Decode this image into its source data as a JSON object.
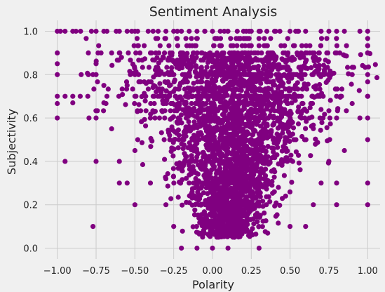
{
  "chart_data": {
    "type": "scatter",
    "title": "Sentiment Analysis",
    "xlabel": "Polarity",
    "ylabel": "Subjectivity",
    "xlim": [
      -1.08,
      1.08
    ],
    "ylim": [
      -0.05,
      1.05
    ],
    "xticks": [
      -1.0,
      -0.75,
      -0.5,
      -0.25,
      0.0,
      0.25,
      0.5,
      0.75,
      1.0
    ],
    "xtick_labels": [
      "−1.00",
      "−0.75",
      "−0.50",
      "−0.25",
      "0.00",
      "0.25",
      "0.50",
      "0.75",
      "1.00"
    ],
    "yticks": [
      0.0,
      0.2,
      0.4,
      0.6,
      0.8,
      1.0
    ],
    "ytick_labels": [
      "0.0",
      "0.2",
      "0.4",
      "0.6",
      "0.8",
      "1.0"
    ],
    "grid": true,
    "color": "#800080",
    "series": [
      {
        "points": [
          [
            -1.0,
            1.0
          ],
          [
            -0.98,
            1.0
          ],
          [
            -0.95,
            1.0
          ],
          [
            -0.9,
            1.0
          ],
          [
            -0.88,
            1.0
          ],
          [
            -0.85,
            1.0
          ],
          [
            -0.78,
            1.0
          ],
          [
            -0.75,
            1.0
          ],
          [
            -0.7,
            1.0
          ],
          [
            -0.68,
            1.0
          ],
          [
            -0.62,
            1.0
          ],
          [
            -0.6,
            1.0
          ],
          [
            -0.55,
            1.0
          ],
          [
            -0.52,
            1.0
          ],
          [
            -0.5,
            1.0
          ],
          [
            -0.35,
            1.0
          ],
          [
            -0.3,
            1.0
          ],
          [
            -0.25,
            1.0
          ],
          [
            -0.2,
            1.0
          ],
          [
            -0.15,
            1.0
          ],
          [
            -0.1,
            1.0
          ],
          [
            -0.05,
            1.0
          ],
          [
            0.0,
            1.0
          ],
          [
            0.05,
            1.0
          ],
          [
            0.1,
            1.0
          ],
          [
            0.2,
            1.0
          ],
          [
            0.25,
            1.0
          ],
          [
            0.3,
            1.0
          ],
          [
            0.35,
            1.0
          ],
          [
            0.4,
            1.0
          ],
          [
            0.5,
            1.0
          ],
          [
            0.55,
            1.0
          ],
          [
            0.6,
            1.0
          ],
          [
            0.7,
            1.0
          ],
          [
            0.75,
            1.0
          ],
          [
            0.8,
            1.0
          ],
          [
            0.85,
            1.0
          ],
          [
            0.95,
            1.0
          ],
          [
            1.0,
            1.0
          ],
          [
            -1.0,
            0.9
          ],
          [
            -0.8,
            0.9
          ],
          [
            -0.6,
            0.9
          ],
          [
            -0.4,
            0.9
          ],
          [
            -1.0,
            0.85
          ],
          [
            -0.75,
            0.85
          ],
          [
            -0.2,
            0.9
          ],
          [
            0.6,
            0.9
          ],
          [
            0.8,
            0.9
          ],
          [
            1.0,
            0.9
          ],
          [
            -1.0,
            0.8
          ],
          [
            -0.8,
            0.8
          ],
          [
            -0.75,
            0.8
          ],
          [
            -0.5,
            0.8
          ],
          [
            -0.7,
            0.75
          ],
          [
            -0.55,
            0.75
          ],
          [
            0.7,
            0.8
          ],
          [
            0.9,
            0.8
          ],
          [
            1.0,
            0.8
          ],
          [
            -1.0,
            0.7
          ],
          [
            -0.95,
            0.7
          ],
          [
            -0.9,
            0.7
          ],
          [
            -0.7,
            0.67
          ],
          [
            -0.5,
            0.7
          ],
          [
            0.8,
            0.7
          ],
          [
            1.0,
            0.7
          ],
          [
            -1.0,
            0.6
          ],
          [
            -0.75,
            0.6
          ],
          [
            -0.9,
            0.67
          ],
          [
            -0.65,
            0.55
          ],
          [
            -0.4,
            0.6
          ],
          [
            0.8,
            0.6
          ],
          [
            0.95,
            0.6
          ],
          [
            1.0,
            0.6
          ],
          [
            -0.95,
            0.4
          ],
          [
            -0.75,
            0.4
          ],
          [
            -0.6,
            0.4
          ],
          [
            -0.5,
            0.45
          ],
          [
            0.75,
            0.4
          ],
          [
            0.85,
            0.45
          ],
          [
            1.0,
            0.5
          ],
          [
            -0.6,
            0.3
          ],
          [
            -0.55,
            0.3
          ],
          [
            -0.4,
            0.3
          ],
          [
            0.7,
            0.3
          ],
          [
            0.8,
            0.3
          ],
          [
            1.0,
            0.3
          ],
          [
            -0.5,
            0.2
          ],
          [
            -0.3,
            0.2
          ],
          [
            0.65,
            0.2
          ],
          [
            0.8,
            0.2
          ],
          [
            1.0,
            0.2
          ],
          [
            -0.77,
            0.1
          ],
          [
            -0.25,
            0.1
          ],
          [
            0.5,
            0.1
          ],
          [
            0.6,
            0.1
          ],
          [
            -0.2,
            0.0
          ],
          [
            -0.1,
            0.0
          ],
          [
            0.0,
            0.0
          ],
          [
            0.1,
            0.0
          ],
          [
            0.3,
            0.0
          ]
        ]
      }
    ]
  }
}
